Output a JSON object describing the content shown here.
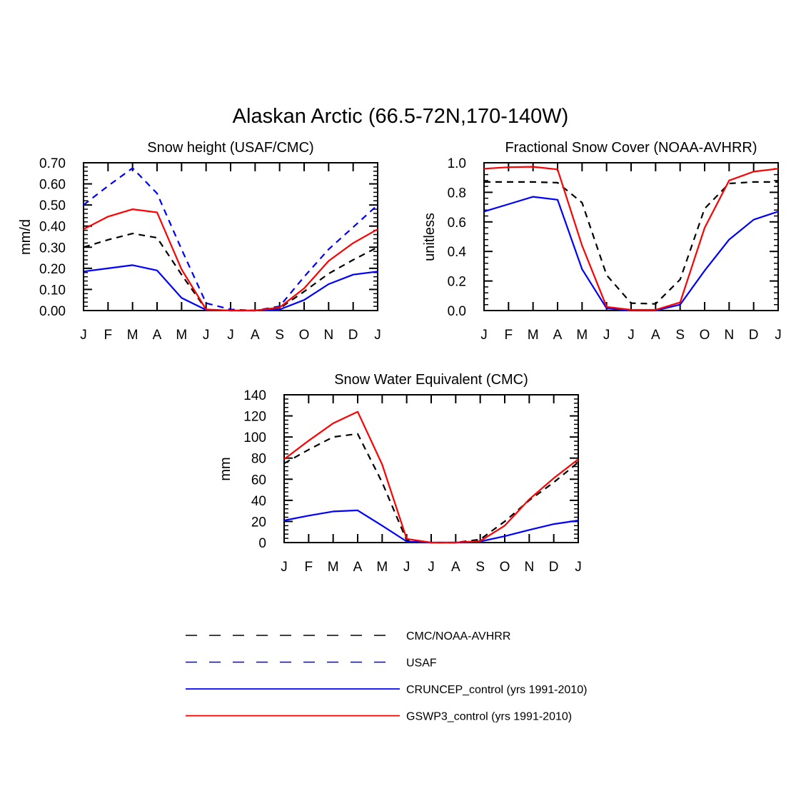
{
  "title": "Alaskan Arctic (66.5-72N,170-140W)",
  "colors": {
    "black": "#000000",
    "blue": "#0000ff",
    "red": "#ff0000"
  },
  "chart_data": [
    {
      "type": "line",
      "title": "Snow height (USAF/CMC)",
      "xlabel": "",
      "ylabel": "mm/d",
      "categories": [
        "J",
        "F",
        "M",
        "A",
        "M",
        "J",
        "J",
        "A",
        "S",
        "O",
        "N",
        "D",
        "J"
      ],
      "ylim": [
        0,
        0.7
      ],
      "yticks": [
        "0.00",
        "0.10",
        "0.20",
        "0.30",
        "0.40",
        "0.50",
        "0.60",
        "0.70"
      ],
      "series": [
        {
          "name": "CMC/NOAA-AVHRR",
          "style": "black-dash",
          "values": [
            0.3,
            0.335,
            0.365,
            0.345,
            0.17,
            0.005,
            0.0,
            0.0,
            0.01,
            0.09,
            0.175,
            0.24,
            0.3
          ]
        },
        {
          "name": "USAF",
          "style": "blue-dash",
          "values": [
            0.5,
            0.59,
            0.675,
            0.555,
            0.29,
            0.035,
            0.005,
            0.0,
            0.02,
            0.16,
            0.29,
            0.395,
            0.5
          ]
        },
        {
          "name": "CRUNCEP_control (yrs 1991-2010)",
          "style": "blue-solid",
          "values": [
            0.185,
            0.2,
            0.215,
            0.19,
            0.06,
            0.003,
            0.0,
            0.0,
            0.005,
            0.05,
            0.125,
            0.17,
            0.185
          ]
        },
        {
          "name": "GSWP3_control (yrs 1991-2010)",
          "style": "red-solid",
          "values": [
            0.385,
            0.445,
            0.48,
            0.465,
            0.195,
            0.005,
            0.0,
            0.0,
            0.015,
            0.105,
            0.235,
            0.32,
            0.385
          ]
        }
      ]
    },
    {
      "type": "line",
      "title": "Fractional Snow Cover (NOAA-AVHRR)",
      "xlabel": "",
      "ylabel": "unitless",
      "categories": [
        "J",
        "F",
        "M",
        "A",
        "M",
        "J",
        "J",
        "A",
        "S",
        "O",
        "N",
        "D",
        "J"
      ],
      "ylim": [
        0,
        1.0
      ],
      "yticks": [
        "0.0",
        "0.2",
        "0.4",
        "0.6",
        "0.8",
        "1.0"
      ],
      "series": [
        {
          "name": "CMC/NOAA-AVHRR",
          "style": "black-dash",
          "values": [
            0.87,
            0.87,
            0.87,
            0.865,
            0.73,
            0.24,
            0.05,
            0.045,
            0.21,
            0.69,
            0.86,
            0.87,
            0.87
          ]
        },
        {
          "name": "CRUNCEP_control (yrs 1991-2010)",
          "style": "blue-solid",
          "values": [
            0.67,
            0.72,
            0.77,
            0.75,
            0.28,
            0.015,
            0.0,
            0.0,
            0.04,
            0.27,
            0.48,
            0.615,
            0.67
          ]
        },
        {
          "name": "GSWP3_control (yrs 1991-2010)",
          "style": "red-solid",
          "values": [
            0.96,
            0.97,
            0.973,
            0.955,
            0.44,
            0.025,
            0.005,
            0.005,
            0.055,
            0.56,
            0.88,
            0.94,
            0.96
          ]
        }
      ]
    },
    {
      "type": "line",
      "title": "Snow Water Equivalent (CMC)",
      "xlabel": "",
      "ylabel": "mm",
      "categories": [
        "J",
        "F",
        "M",
        "A",
        "M",
        "J",
        "J",
        "A",
        "S",
        "O",
        "N",
        "D",
        "J"
      ],
      "ylim": [
        0,
        140
      ],
      "yticks": [
        "0",
        "20",
        "40",
        "60",
        "80",
        "100",
        "120",
        "140"
      ],
      "series": [
        {
          "name": "CMC/NOAA-AVHRR",
          "style": "black-dash",
          "values": [
            75,
            88,
            100,
            103,
            57,
            2,
            0,
            0,
            3,
            20,
            40,
            57,
            76
          ]
        },
        {
          "name": "CRUNCEP_control (yrs 1991-2010)",
          "style": "blue-solid",
          "values": [
            21,
            25.5,
            29.5,
            30.5,
            16,
            1,
            0,
            0,
            1,
            6,
            12,
            17.5,
            21
          ]
        },
        {
          "name": "GSWP3_control (yrs 1991-2010)",
          "style": "red-solid",
          "values": [
            79,
            96.5,
            113,
            124,
            74,
            3.5,
            0,
            0,
            1.5,
            16,
            41,
            61,
            79
          ]
        }
      ]
    }
  ],
  "legend": [
    {
      "label": "CMC/NOAA-AVHRR",
      "style": "black-dash"
    },
    {
      "label": "USAF",
      "style": "blue-dash"
    },
    {
      "label": "CRUNCEP_control (yrs 1991-2010)",
      "style": "blue-solid"
    },
    {
      "label": "GSWP3_control (yrs 1991-2010)",
      "style": "red-solid"
    }
  ]
}
